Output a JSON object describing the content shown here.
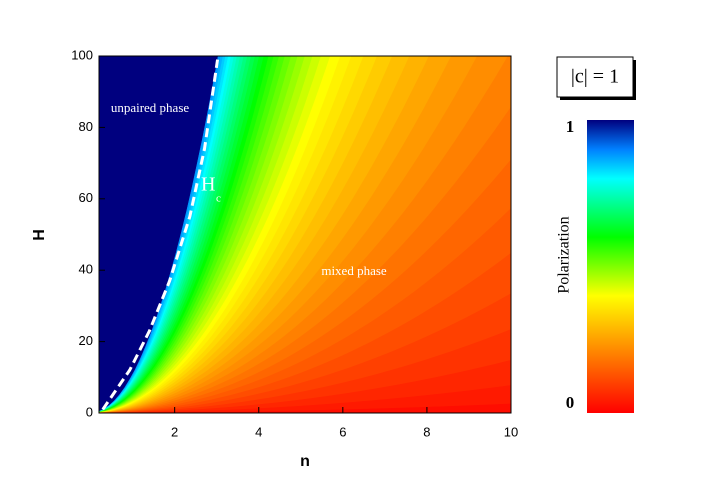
{
  "chart_data": {
    "type": "line",
    "x_label": "n",
    "y_label": "H",
    "xlim": [
      0.2,
      10
    ],
    "ylim": [
      0,
      100
    ],
    "xticks": [
      2,
      4,
      6,
      8,
      10
    ],
    "yticks": [
      0,
      20,
      40,
      60,
      80,
      100
    ],
    "x": [
      0.29,
      0.93,
      1.4,
      1.88,
      2.36,
      2.71,
      3.02
    ],
    "series": [
      {
        "color": "#ffffff",
        "values": [
          1,
          12,
          23,
          37,
          55,
          74,
          99
        ]
      }
    ],
    "curve_label": {
      "main": "H",
      "sub": "c"
    },
    "annotations": [
      "unpaired phase",
      "mixed phase"
    ],
    "legend_box": "|c| = 1",
    "colorbar": {
      "title": "Polarization",
      "ticks": [
        0,
        1
      ]
    }
  }
}
